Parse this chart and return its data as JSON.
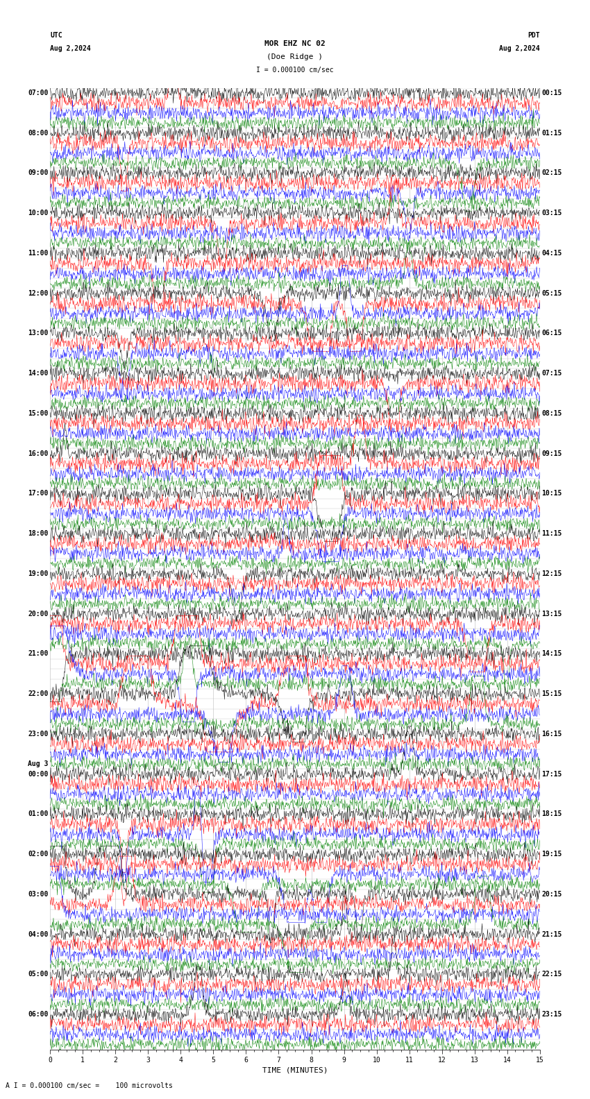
{
  "title_line1": "MOR EHZ NC 02",
  "title_line2": "(Doe Ridge )",
  "scale_text": "I = 0.000100 cm/sec",
  "utc_label": "UTC",
  "utc_date": "Aug 2,2024",
  "pdt_label": "PDT",
  "pdt_date": "Aug 2,2024",
  "footer_text": "A I = 0.000100 cm/sec =    100 microvolts",
  "xlabel": "TIME (MINUTES)",
  "left_labels": [
    {
      "row": 0,
      "text": "07:00",
      "bold": true
    },
    {
      "row": 4,
      "text": "08:00",
      "bold": true
    },
    {
      "row": 8,
      "text": "09:00",
      "bold": true
    },
    {
      "row": 12,
      "text": "10:00",
      "bold": true
    },
    {
      "row": 16,
      "text": "11:00",
      "bold": true
    },
    {
      "row": 20,
      "text": "12:00",
      "bold": true
    },
    {
      "row": 24,
      "text": "13:00",
      "bold": true
    },
    {
      "row": 28,
      "text": "14:00",
      "bold": true
    },
    {
      "row": 32,
      "text": "15:00",
      "bold": true
    },
    {
      "row": 36,
      "text": "16:00",
      "bold": true
    },
    {
      "row": 40,
      "text": "17:00",
      "bold": true
    },
    {
      "row": 44,
      "text": "18:00",
      "bold": true
    },
    {
      "row": 48,
      "text": "19:00",
      "bold": true
    },
    {
      "row": 52,
      "text": "20:00",
      "bold": true
    },
    {
      "row": 56,
      "text": "21:00",
      "bold": true
    },
    {
      "row": 60,
      "text": "22:00",
      "bold": true
    },
    {
      "row": 64,
      "text": "23:00",
      "bold": true
    },
    {
      "row": 67,
      "text": "Aug 3",
      "bold": true
    },
    {
      "row": 68,
      "text": "00:00",
      "bold": true
    },
    {
      "row": 72,
      "text": "01:00",
      "bold": true
    },
    {
      "row": 76,
      "text": "02:00",
      "bold": true
    },
    {
      "row": 80,
      "text": "03:00",
      "bold": true
    },
    {
      "row": 84,
      "text": "04:00",
      "bold": true
    },
    {
      "row": 88,
      "text": "05:00",
      "bold": true
    },
    {
      "row": 92,
      "text": "06:00",
      "bold": true
    }
  ],
  "right_labels": [
    {
      "row": 0,
      "text": "00:15"
    },
    {
      "row": 4,
      "text": "01:15"
    },
    {
      "row": 8,
      "text": "02:15"
    },
    {
      "row": 12,
      "text": "03:15"
    },
    {
      "row": 16,
      "text": "04:15"
    },
    {
      "row": 20,
      "text": "05:15"
    },
    {
      "row": 24,
      "text": "06:15"
    },
    {
      "row": 28,
      "text": "07:15"
    },
    {
      "row": 32,
      "text": "08:15"
    },
    {
      "row": 36,
      "text": "09:15"
    },
    {
      "row": 40,
      "text": "10:15"
    },
    {
      "row": 44,
      "text": "11:15"
    },
    {
      "row": 48,
      "text": "12:15"
    },
    {
      "row": 52,
      "text": "13:15"
    },
    {
      "row": 56,
      "text": "14:15"
    },
    {
      "row": 60,
      "text": "15:15"
    },
    {
      "row": 64,
      "text": "16:15"
    },
    {
      "row": 68,
      "text": "17:15"
    },
    {
      "row": 72,
      "text": "18:15"
    },
    {
      "row": 76,
      "text": "19:15"
    },
    {
      "row": 80,
      "text": "20:15"
    },
    {
      "row": 84,
      "text": "21:15"
    },
    {
      "row": 88,
      "text": "22:15"
    },
    {
      "row": 92,
      "text": "23:15"
    }
  ],
  "n_rows": 96,
  "n_cols": 900,
  "trace_colors": [
    "black",
    "red",
    "blue",
    "green"
  ],
  "bg_color": "white",
  "grid_color": "#bbbbbb",
  "title_fontsize": 8,
  "label_fontsize": 7,
  "tick_fontsize": 7,
  "noise_std": 0.06,
  "amplitude_scale": 0.38
}
